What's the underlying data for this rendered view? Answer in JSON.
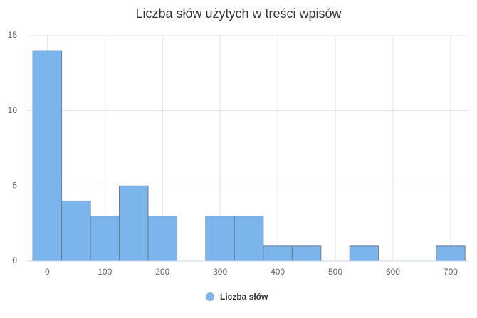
{
  "chart_data": {
    "type": "histogram",
    "title": "Liczba słów użytych w treści wpisów",
    "series": [
      {
        "name": "Liczba słów",
        "color": "#7cb5ec",
        "bins": [
          -25,
          25,
          75,
          125,
          175,
          225,
          275,
          325,
          375,
          425,
          475,
          525,
          575,
          625,
          675,
          725
        ],
        "values": [
          14,
          4,
          3,
          5,
          3,
          0,
          3,
          3,
          1,
          1,
          0,
          1,
          0,
          0,
          1
        ]
      }
    ],
    "xlim": [
      -35,
      731
    ],
    "xticks": [
      0,
      100,
      200,
      300,
      400,
      500,
      600,
      700
    ],
    "ylim": [
      0,
      15
    ],
    "yticks": [
      0,
      5,
      10,
      15
    ],
    "grid": true
  }
}
